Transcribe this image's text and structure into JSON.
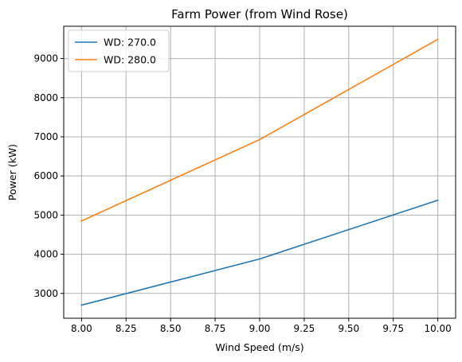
{
  "chart_data": {
    "type": "line",
    "title": "Farm Power (from Wind Rose)",
    "xlabel": "Wind Speed (m/s)",
    "ylabel": "Power (kW)",
    "x": [
      8.0,
      9.0,
      10.0
    ],
    "series": [
      {
        "name": "WD: 270.0",
        "color": "#1f77b4",
        "values": [
          2700,
          3880,
          5380
        ]
      },
      {
        "name": "WD: 280.0",
        "color": "#ff7f0e",
        "values": [
          4850,
          6930,
          9490
        ]
      }
    ],
    "xlim": [
      7.9,
      10.1
    ],
    "ylim": [
      2365,
      9825
    ],
    "xticks": [
      8.0,
      8.25,
      8.5,
      8.75,
      9.0,
      9.25,
      9.5,
      9.75,
      10.0
    ],
    "xtick_labels": [
      "8.00",
      "8.25",
      "8.50",
      "8.75",
      "9.00",
      "9.25",
      "9.50",
      "9.75",
      "10.00"
    ],
    "yticks": [
      3000,
      4000,
      5000,
      6000,
      7000,
      8000,
      9000
    ],
    "ytick_labels": [
      "3000",
      "4000",
      "5000",
      "6000",
      "7000",
      "8000",
      "9000"
    ],
    "grid": true,
    "legend_position": "top-left"
  }
}
